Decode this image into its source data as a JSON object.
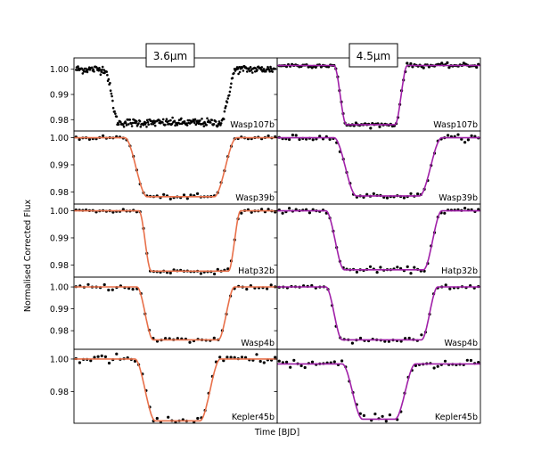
{
  "figure": {
    "ylabel": "Normalised Corrected Flux",
    "xlabel": "Time [BJD]",
    "columns": [
      {
        "label": "3.6μm",
        "fit_color": "#e8704a"
      },
      {
        "label": "4.5μm",
        "fit_color": "#a020a8"
      }
    ],
    "point_color": "#000000"
  },
  "chart_data": [
    {
      "type": "scatter",
      "planet": "Wasp107b",
      "band": "3.6μm",
      "yticks": [
        "1.00",
        "0.99",
        "0.98"
      ],
      "ylim": [
        0.9755,
        1.0045
      ],
      "depth": 0.0212,
      "ingress_start": 0.15,
      "ingress_end": 0.22,
      "egress_start": 0.72,
      "egress_end": 0.8,
      "base_level": 1.0,
      "fit": false,
      "n_points": 300,
      "noise": 0.0008
    },
    {
      "type": "scatter",
      "planet": "Wasp107b",
      "band": "4.5μm",
      "yticks": [
        "1.00",
        "0.99",
        "0.98"
      ],
      "ylim": [
        0.9755,
        1.0045
      ],
      "depth": 0.0235,
      "ingress_start": 0.28,
      "ingress_end": 0.34,
      "egress_start": 0.58,
      "egress_end": 0.64,
      "base_level": 1.0015,
      "fit": true,
      "n_points": 110,
      "noise": 0.0004
    },
    {
      "type": "scatter",
      "planet": "Wasp39b",
      "band": "3.6μm",
      "yticks": [
        "1.00",
        "0.99",
        "0.98"
      ],
      "ylim": [
        0.9755,
        1.0025
      ],
      "depth": 0.0218,
      "ingress_start": 0.25,
      "ingress_end": 0.36,
      "egress_start": 0.69,
      "egress_end": 0.8,
      "base_level": 1.0,
      "fit": true,
      "n_points": 60,
      "noise": 0.0004
    },
    {
      "type": "scatter",
      "planet": "Wasp39b",
      "band": "4.5μm",
      "yticks": [
        "1.00",
        "0.99",
        "0.98"
      ],
      "ylim": [
        0.9755,
        1.0025
      ],
      "depth": 0.0215,
      "ingress_start": 0.28,
      "ingress_end": 0.39,
      "egress_start": 0.7,
      "egress_end": 0.81,
      "base_level": 1.0,
      "fit": true,
      "n_points": 60,
      "noise": 0.0005
    },
    {
      "type": "scatter",
      "planet": "Hatp32b",
      "band": "3.6μm",
      "yticks": [
        "1.00",
        "0.99",
        "0.98"
      ],
      "ylim": [
        0.9755,
        1.0025
      ],
      "depth": 0.0223,
      "ingress_start": 0.32,
      "ingress_end": 0.38,
      "egress_start": 0.76,
      "egress_end": 0.82,
      "base_level": 1.0,
      "fit": true,
      "n_points": 60,
      "noise": 0.0004
    },
    {
      "type": "scatter",
      "planet": "Hatp32b",
      "band": "4.5μm",
      "yticks": [
        "1.00",
        "0.99",
        "0.98"
      ],
      "ylim": [
        0.9755,
        1.0025
      ],
      "depth": 0.0218,
      "ingress_start": 0.24,
      "ingress_end": 0.33,
      "egress_start": 0.72,
      "egress_end": 0.81,
      "base_level": 1.0,
      "fit": true,
      "n_points": 60,
      "noise": 0.0005
    },
    {
      "type": "scatter",
      "planet": "Wasp4b",
      "band": "3.6μm",
      "yticks": [
        "1.00",
        "0.99",
        "0.98"
      ],
      "ylim": [
        0.9715,
        1.0045
      ],
      "depth": 0.0242,
      "ingress_start": 0.31,
      "ingress_end": 0.39,
      "egress_start": 0.71,
      "egress_end": 0.79,
      "base_level": 1.0,
      "fit": true,
      "n_points": 50,
      "noise": 0.0007
    },
    {
      "type": "scatter",
      "planet": "Wasp4b",
      "band": "4.5μm",
      "yticks": [
        "1.00",
        "0.99",
        "0.98"
      ],
      "ylim": [
        0.9715,
        1.0045
      ],
      "depth": 0.0242,
      "ingress_start": 0.24,
      "ingress_end": 0.32,
      "egress_start": 0.71,
      "egress_end": 0.79,
      "base_level": 1.0,
      "fit": true,
      "n_points": 50,
      "noise": 0.0007
    },
    {
      "type": "scatter",
      "planet": "Kepler45b",
      "band": "3.6μm",
      "yticks": [
        "1.00",
        "0.98"
      ],
      "ylim": [
        0.9605,
        1.006
      ],
      "depth": 0.038,
      "ingress_start": 0.3,
      "ingress_end": 0.4,
      "egress_start": 0.62,
      "egress_end": 0.72,
      "base_level": 1.0,
      "fit": true,
      "n_points": 55,
      "noise": 0.0015
    },
    {
      "type": "scatter",
      "planet": "Kepler45b",
      "band": "4.5μm",
      "yticks": [
        "1.00",
        "0.98"
      ],
      "ylim": [
        0.9605,
        1.006
      ],
      "depth": 0.034,
      "ingress_start": 0.32,
      "ingress_end": 0.42,
      "egress_start": 0.58,
      "egress_end": 0.68,
      "base_level": 0.997,
      "fit": true,
      "n_points": 55,
      "noise": 0.0015
    }
  ]
}
